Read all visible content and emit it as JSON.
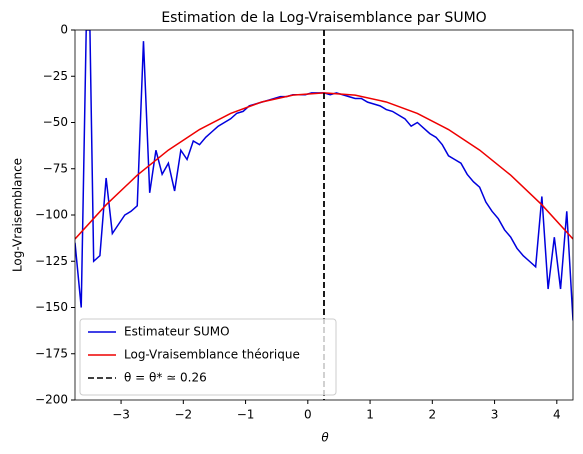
{
  "chart_data": {
    "type": "line",
    "title": "Estimation de la Log-Vraisemblance par SUMO",
    "xlabel": "θ",
    "ylabel": "Log-Vraisemblance",
    "xlim": [
      -3.74,
      4.26
    ],
    "ylim": [
      -200,
      0
    ],
    "xticks": [
      {
        "value": -3,
        "label": "−3"
      },
      {
        "value": -2,
        "label": "−2"
      },
      {
        "value": -1,
        "label": "−1"
      },
      0,
      1,
      2,
      3,
      4
    ],
    "yticks": [
      0,
      {
        "value": -25,
        "label": "−25"
      },
      {
        "value": -50,
        "label": "−50"
      },
      {
        "value": -75,
        "label": "−75"
      },
      {
        "value": -100,
        "label": "−100"
      },
      {
        "value": -125,
        "label": "−125"
      },
      {
        "value": -150,
        "label": "−150"
      },
      {
        "value": -175,
        "label": "−175"
      },
      {
        "value": -200,
        "label": "−200"
      }
    ],
    "legend": "lower left",
    "series": [
      {
        "name": "Estimateur SUMO",
        "color": "#0000dd",
        "x": [
          -3.74,
          -3.64,
          -3.56,
          -3.5,
          -3.44,
          -3.34,
          -3.24,
          -3.14,
          -3.04,
          -2.94,
          -2.84,
          -2.74,
          -2.64,
          -2.54,
          -2.44,
          -2.34,
          -2.24,
          -2.14,
          -2.04,
          -1.94,
          -1.84,
          -1.74,
          -1.64,
          -1.54,
          -1.44,
          -1.34,
          -1.24,
          -1.14,
          -1.04,
          -0.94,
          -0.84,
          -0.74,
          -0.64,
          -0.54,
          -0.44,
          -0.34,
          -0.24,
          -0.14,
          -0.04,
          0.06,
          0.16,
          0.26,
          0.36,
          0.46,
          0.56,
          0.66,
          0.76,
          0.86,
          0.96,
          1.06,
          1.16,
          1.26,
          1.36,
          1.46,
          1.56,
          1.66,
          1.76,
          1.86,
          1.96,
          2.06,
          2.16,
          2.26,
          2.36,
          2.46,
          2.56,
          2.66,
          2.76,
          2.86,
          2.96,
          3.06,
          3.16,
          3.26,
          3.36,
          3.46,
          3.56,
          3.66,
          3.76,
          3.86,
          3.96,
          4.06,
          4.16,
          4.26
        ],
        "values": [
          -115,
          -150,
          0,
          0,
          -125,
          -122,
          -80,
          -110,
          -105,
          -100,
          -98,
          -95,
          -6,
          -88,
          -65,
          -78,
          -72,
          -87,
          -65,
          -70,
          -60,
          -62,
          -58,
          -55,
          -52,
          -50,
          -48,
          -45,
          -44,
          -41,
          -40,
          -39,
          -38,
          -37,
          -36,
          -36,
          -35,
          -35,
          -35,
          -34,
          -34,
          -34,
          -35,
          -34,
          -35,
          -36,
          -37,
          -37,
          -39,
          -40,
          -41,
          -43,
          -44,
          -46,
          -48,
          -52,
          -50,
          -53,
          -56,
          -58,
          -62,
          -68,
          -70,
          -72,
          -78,
          -82,
          -85,
          -93,
          -98,
          -102,
          -108,
          -112,
          -118,
          -122,
          -125,
          -128,
          -90,
          -140,
          -112,
          -140,
          -98,
          -157
        ]
      },
      {
        "name": "Log-Vraisemblance théorique",
        "color": "#ee0000",
        "x": [
          -3.74,
          -3.24,
          -2.74,
          -2.24,
          -1.74,
          -1.24,
          -0.74,
          -0.24,
          0.26,
          0.76,
          1.26,
          1.76,
          2.26,
          2.76,
          3.26,
          3.76,
          4.26
        ],
        "values": [
          -113.0,
          -94.5,
          -78.5,
          -64.9,
          -53.8,
          -45.1,
          -38.9,
          -35.2,
          -34.0,
          -35.2,
          -38.9,
          -45.1,
          -53.8,
          -64.9,
          -78.5,
          -94.5,
          -113.0
        ]
      }
    ],
    "vline": {
      "x": 0.26,
      "label": "θ = θ* ≃ 0.26",
      "color": "#000000"
    }
  }
}
